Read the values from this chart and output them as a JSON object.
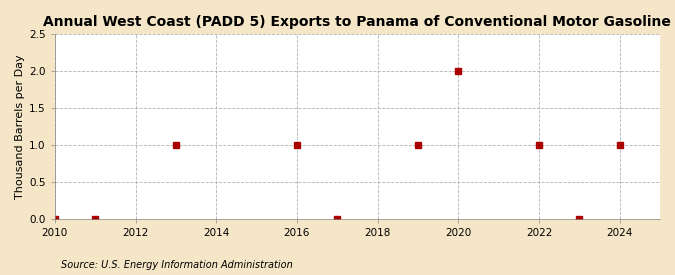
{
  "title": "Annual West Coast (PADD 5) Exports to Panama of Conventional Motor Gasoline",
  "ylabel": "Thousand Barrels per Day",
  "source": "Source: U.S. Energy Information Administration",
  "background_color": "#f5e6c8",
  "plot_bg_color": "#ffffff",
  "data_x": [
    2010,
    2011,
    2013,
    2016,
    2017,
    2019,
    2020,
    2022,
    2023,
    2024
  ],
  "data_y": [
    0.0,
    0.0,
    1.0,
    1.0,
    0.0,
    1.0,
    2.0,
    1.0,
    0.0,
    1.0
  ],
  "marker_color": "#aa0000",
  "marker_size": 4,
  "xlim": [
    2010,
    2025
  ],
  "ylim": [
    0.0,
    2.5
  ],
  "xticks": [
    2010,
    2012,
    2014,
    2016,
    2018,
    2020,
    2022,
    2024
  ],
  "yticks": [
    0.0,
    0.5,
    1.0,
    1.5,
    2.0,
    2.5
  ],
  "grid_color": "#aaaaaa",
  "title_fontsize": 10,
  "label_fontsize": 8,
  "tick_fontsize": 7.5,
  "source_fontsize": 7
}
